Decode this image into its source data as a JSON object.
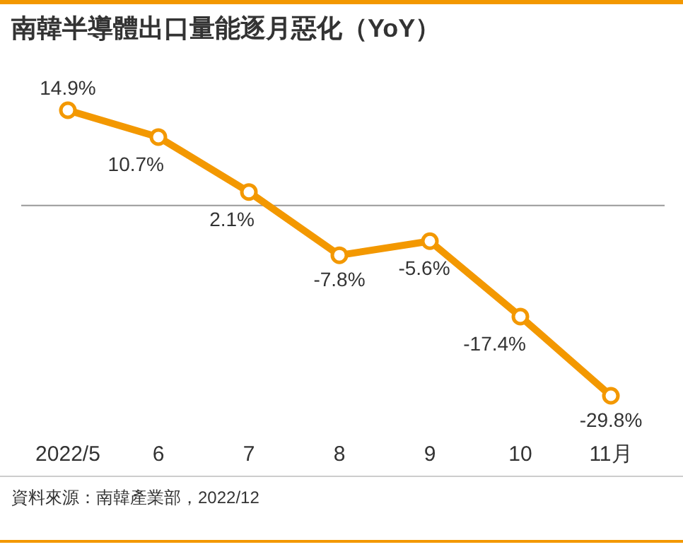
{
  "chart_data": {
    "type": "line",
    "title": "南韓半導體出口量能逐月惡化（YoY）",
    "categories": [
      "2022/5",
      "6",
      "7",
      "8",
      "9",
      "10",
      "11月"
    ],
    "series": [
      {
        "color": "#f39800",
        "values": [
          14.9,
          10.7,
          2.1,
          -7.8,
          -5.6,
          -17.4,
          -29.8
        ],
        "value_labels": [
          "14.9%",
          "10.7%",
          "2.1%",
          "-7.8%",
          "-5.6%",
          "-17.4%",
          "-29.8%"
        ]
      }
    ],
    "marker": "circle",
    "annotations": [
      "資料來源：南韓產業部，2022/12"
    ]
  }
}
